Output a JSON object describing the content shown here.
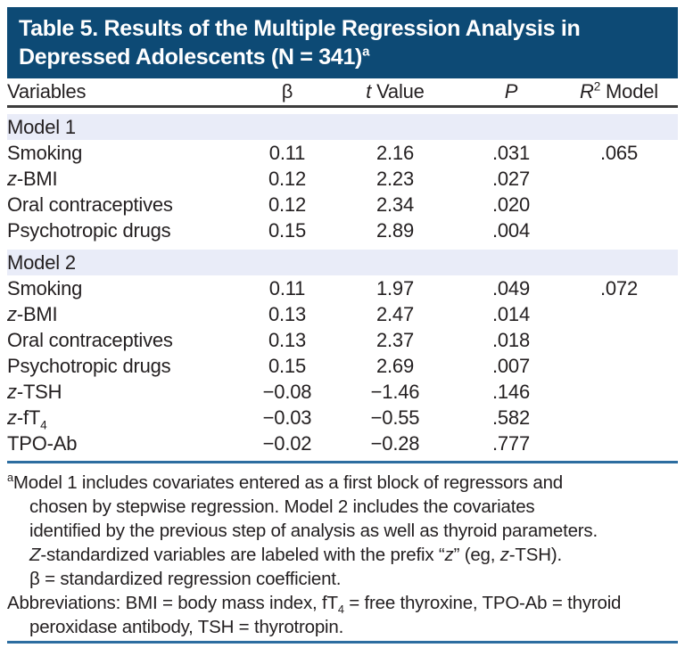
{
  "colors": {
    "header_bg": "#0d4a75",
    "header_text": "#ffffff",
    "band_bg": "#e9ecf8",
    "rule_dark": "#3c3c3c",
    "rule_blue": "#2c6da0",
    "text": "#231f20"
  },
  "title": {
    "lines": [
      {
        "segments": [
          {
            "t": "Table 5. Results of the Multiple Regression Analysis in"
          }
        ]
      },
      {
        "segments": [
          {
            "t": "Depressed Adolescents (N = 341)"
          },
          {
            "t": "a",
            "s": "sup"
          }
        ]
      }
    ]
  },
  "table": {
    "columns": [
      {
        "id": "variables",
        "segments": [
          {
            "t": "Variables"
          }
        ]
      },
      {
        "id": "beta",
        "segments": [
          {
            "t": "β"
          }
        ]
      },
      {
        "id": "t_value",
        "segments": [
          {
            "t": "t",
            "s": "i"
          },
          {
            "t": " Value"
          }
        ]
      },
      {
        "id": "p",
        "segments": [
          {
            "t": "P",
            "s": "i"
          }
        ]
      },
      {
        "id": "r2_model",
        "segments": [
          {
            "t": "R",
            "s": "i"
          },
          {
            "t": "2",
            "s": "sup"
          },
          {
            "t": " Model"
          }
        ]
      }
    ],
    "sections": [
      {
        "label": "Model 1",
        "rows": [
          {
            "variable": [
              {
                "t": "Smoking"
              }
            ],
            "beta": "0.11",
            "t": "2.16",
            "p": ".031",
            "r2": ".065"
          },
          {
            "variable": [
              {
                "t": "z",
                "s": "i"
              },
              {
                "t": "-BMI"
              }
            ],
            "beta": "0.12",
            "t": "2.23",
            "p": ".027",
            "r2": ""
          },
          {
            "variable": [
              {
                "t": "Oral contraceptives"
              }
            ],
            "beta": "0.12",
            "t": "2.34",
            "p": ".020",
            "r2": ""
          },
          {
            "variable": [
              {
                "t": "Psychotropic drugs"
              }
            ],
            "beta": "0.15",
            "t": "2.89",
            "p": ".004",
            "r2": ""
          }
        ]
      },
      {
        "label": "Model 2",
        "rows": [
          {
            "variable": [
              {
                "t": "Smoking"
              }
            ],
            "beta": "0.11",
            "t": "1.97",
            "p": ".049",
            "r2": ".072"
          },
          {
            "variable": [
              {
                "t": "z",
                "s": "i"
              },
              {
                "t": "-BMI"
              }
            ],
            "beta": "0.13",
            "t": "2.47",
            "p": ".014",
            "r2": ""
          },
          {
            "variable": [
              {
                "t": "Oral contraceptives"
              }
            ],
            "beta": "0.13",
            "t": "2.37",
            "p": ".018",
            "r2": ""
          },
          {
            "variable": [
              {
                "t": "Psychotropic drugs"
              }
            ],
            "beta": "0.15",
            "t": "2.69",
            "p": ".007",
            "r2": ""
          },
          {
            "variable": [
              {
                "t": "z",
                "s": "i"
              },
              {
                "t": "-TSH"
              }
            ],
            "beta": "−0.08",
            "t": "−1.46",
            "p": ".146",
            "r2": ""
          },
          {
            "variable": [
              {
                "t": "z",
                "s": "i"
              },
              {
                "t": "-fT"
              },
              {
                "t": "4",
                "s": "sub"
              }
            ],
            "beta": "−0.03",
            "t": "−0.55",
            "p": ".582",
            "r2": ""
          },
          {
            "variable": [
              {
                "t": "TPO-Ab"
              }
            ],
            "beta": "−0.02",
            "t": "−0.28",
            "p": ".777",
            "r2": ""
          }
        ]
      }
    ]
  },
  "footnotes": {
    "lines": [
      {
        "indent": false,
        "segments": [
          {
            "t": "a",
            "s": "sup"
          },
          {
            "t": "Model 1 includes covariates entered as a first block of regressors and"
          }
        ]
      },
      {
        "indent": true,
        "segments": [
          {
            "t": "chosen by stepwise regression. Model 2 includes the covariates"
          }
        ]
      },
      {
        "indent": true,
        "segments": [
          {
            "t": "identified by the previous step of analysis as well as thyroid parameters."
          }
        ]
      },
      {
        "indent": true,
        "segments": [
          {
            "t": "Z",
            "s": "i"
          },
          {
            "t": "-standardized variables are labeled with the prefix “"
          },
          {
            "t": "z",
            "s": "i"
          },
          {
            "t": "” (eg, "
          },
          {
            "t": "z",
            "s": "i"
          },
          {
            "t": "-TSH)."
          }
        ]
      },
      {
        "indent": true,
        "segments": [
          {
            "t": "β = standardized regression coefficient."
          }
        ]
      },
      {
        "indent": false,
        "segments": [
          {
            "t": "Abbreviations: BMI = body mass index, fT"
          },
          {
            "t": "4",
            "s": "sub"
          },
          {
            "t": " = free thyroxine, TPO-Ab = thyroid"
          }
        ]
      },
      {
        "indent": true,
        "segments": [
          {
            "t": "peroxidase antibody, TSH = thyrotropin."
          }
        ]
      }
    ]
  }
}
